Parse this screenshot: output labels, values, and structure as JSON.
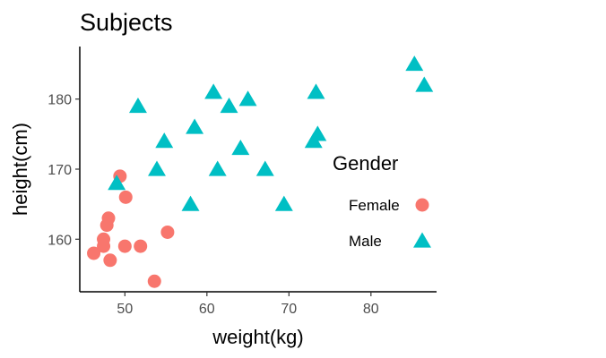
{
  "chart_data": {
    "type": "scatter",
    "title": "Subjects",
    "xlabel": "weight(kg)",
    "ylabel": "height(cm)",
    "xlim": [
      44.5,
      88
    ],
    "ylim": [
      152.5,
      187.5
    ],
    "x_ticks": [
      50,
      60,
      70,
      80
    ],
    "y_ticks": [
      160,
      170,
      180
    ],
    "grid": false,
    "legend": {
      "title": "Gender",
      "position": "right-inside"
    },
    "series": [
      {
        "name": "Female",
        "marker": "circle",
        "color": "#F8766D",
        "points": [
          [
            46.2,
            158
          ],
          [
            47.4,
            159
          ],
          [
            47.4,
            160
          ],
          [
            47.8,
            162
          ],
          [
            48,
            163
          ],
          [
            48.2,
            157
          ],
          [
            49.4,
            169
          ],
          [
            50.0,
            159
          ],
          [
            50.1,
            166
          ],
          [
            51.9,
            159
          ],
          [
            53.6,
            154
          ],
          [
            55.2,
            161
          ]
        ]
      },
      {
        "name": "Male",
        "marker": "triangle",
        "color": "#00BFC4",
        "points": [
          [
            49.0,
            168
          ],
          [
            51.6,
            179
          ],
          [
            53.9,
            170
          ],
          [
            54.8,
            174
          ],
          [
            58.0,
            165
          ],
          [
            58.5,
            176
          ],
          [
            60.8,
            181
          ],
          [
            61.3,
            170
          ],
          [
            62.7,
            179
          ],
          [
            64.1,
            173
          ],
          [
            65.0,
            180
          ],
          [
            67.1,
            170
          ],
          [
            69.4,
            165
          ],
          [
            73.0,
            174
          ],
          [
            73.3,
            181
          ],
          [
            73.5,
            175
          ],
          [
            85.3,
            185
          ],
          [
            86.5,
            182
          ]
        ]
      }
    ]
  }
}
